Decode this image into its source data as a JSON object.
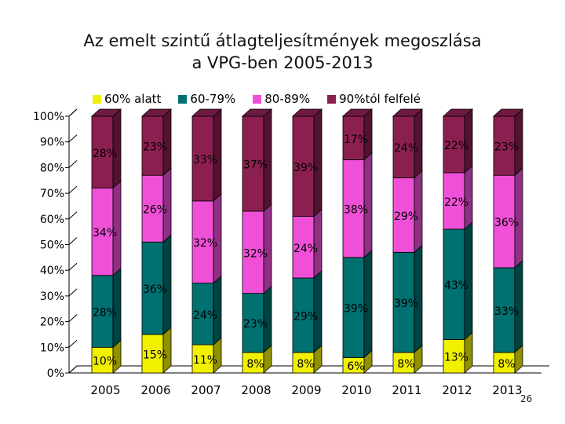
{
  "title_lines": [
    "Az emelt szintű átlagteljesítmények megoszlása",
    "a VPG-ben 2005-2013"
  ],
  "page_number": "26",
  "chart_data": {
    "type": "bar",
    "stacked": true,
    "percent": true,
    "three_d": true,
    "categories": [
      "2005",
      "2006",
      "2007",
      "2008",
      "2009",
      "2010",
      "2011",
      "2012",
      "2013"
    ],
    "ylim": [
      0,
      100
    ],
    "yticks": [
      "0%",
      "10%",
      "20%",
      "30%",
      "40%",
      "50%",
      "60%",
      "70%",
      "80%",
      "90%",
      "100%"
    ],
    "legend_position": "top",
    "series": [
      {
        "name": "60% alatt",
        "color": "#f0f000",
        "values": [
          10,
          15,
          11,
          8,
          8,
          6,
          8,
          13,
          8
        ],
        "labels": [
          "10%",
          "15%",
          "11%",
          "8%",
          "8%",
          "6%",
          "8%",
          "13%",
          "8%"
        ]
      },
      {
        "name": "60-79%",
        "color": "#007070",
        "values": [
          28,
          36,
          24,
          23,
          29,
          39,
          39,
          43,
          33
        ],
        "labels": [
          "28%",
          "36%",
          "24%",
          "23%",
          "29%",
          "39%",
          "39%",
          "43%",
          "33%"
        ]
      },
      {
        "name": "80-89%",
        "color": "#f050d8",
        "values": [
          34,
          26,
          32,
          32,
          24,
          38,
          29,
          22,
          36
        ],
        "labels": [
          "34%",
          "26%",
          "32%",
          "32%",
          "24%",
          "38%",
          "29%",
          "22%",
          "36%"
        ]
      },
      {
        "name": "90%tól felfelé",
        "color": "#8b2050",
        "values": [
          28,
          23,
          33,
          37,
          39,
          17,
          24,
          22,
          23
        ],
        "labels": [
          "28%",
          "23%",
          "33%",
          "37%",
          "39%",
          "17%",
          "24%",
          "22%",
          "23%"
        ]
      }
    ]
  }
}
